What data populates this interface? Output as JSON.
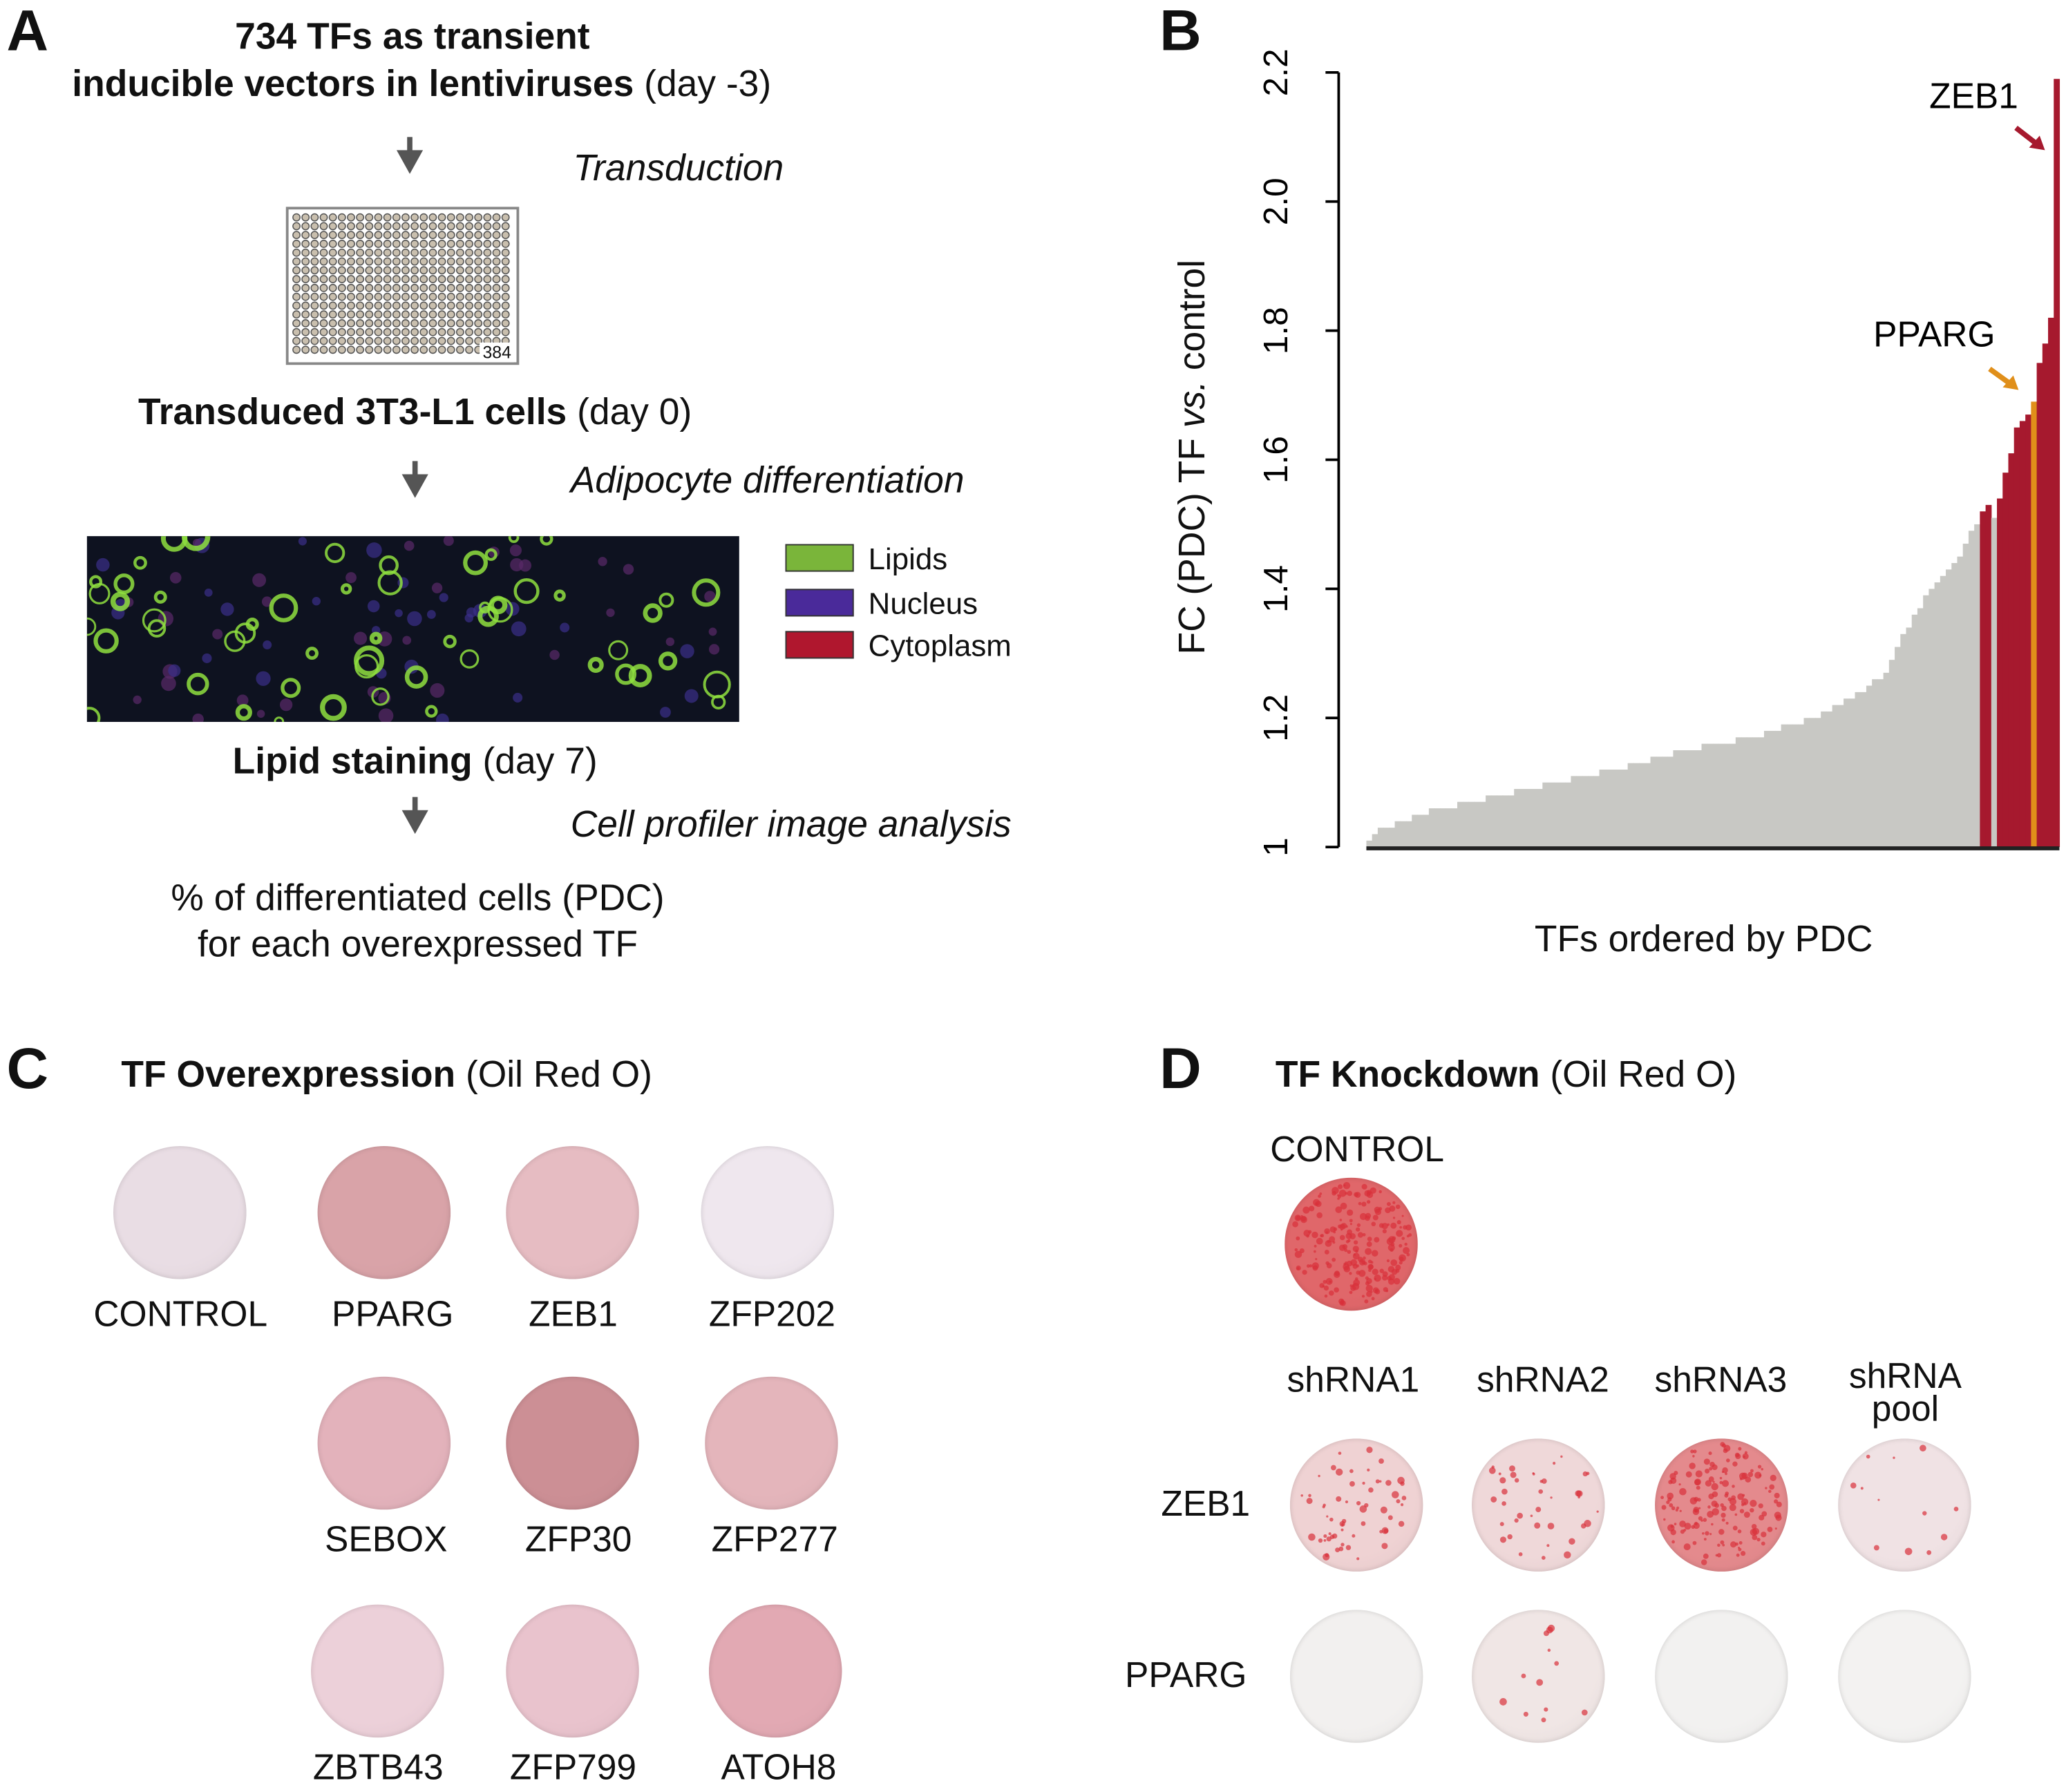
{
  "panel_a": {
    "letter": "A",
    "title_line1": "734 TFs as transient",
    "title_line2_bold": "inducible vectors in lentiviruses",
    "title_line2_normal": " (day -3)",
    "step1": "Transduction",
    "plate_label": "384",
    "cells_bold": "Transduced 3T3-L1 cells",
    "cells_normal": " (day 0)",
    "step2": "Adipocyte differentiation",
    "legend": [
      {
        "label": "Lipids",
        "color": "#7ab53a"
      },
      {
        "label": "Nucleus",
        "color": "#4a2a9a"
      },
      {
        "label": "Cytoplasm",
        "color": "#b0172e"
      }
    ],
    "staining_bold": "Lipid staining",
    "staining_normal": " (day 7)",
    "step3": "Cell profiler image analysis",
    "result_line1": "% of differentiated cells (PDC)",
    "result_line2": "for each overexpressed TF"
  },
  "panel_b": {
    "letter": "B",
    "ylabel_pre": "FC (PDC) TF ",
    "ylabel_italic": "vs.",
    "ylabel_post": " control",
    "xlabel": "TFs ordered by PDC",
    "annotations": [
      {
        "label": "ZEB1",
        "color": "#a6192e"
      },
      {
        "label": "PPARG",
        "color": "#e08f1a"
      }
    ]
  },
  "chart_data": {
    "type": "bar",
    "xlabel": "TFs ordered by PDC",
    "ylabel": "FC (PDC) TF vs. control",
    "ylim": [
      1.0,
      2.2
    ],
    "yticks": [
      "1",
      "1.2",
      "1.4",
      "1.6",
      "1.8",
      "2.0",
      "2.2"
    ],
    "grid": false,
    "colors": {
      "default": "#c8c8c4",
      "highlight": "#a6192e",
      "pparg": "#e08f1a"
    },
    "values": [
      1.01,
      1.02,
      1.03,
      1.03,
      1.03,
      1.04,
      1.04,
      1.04,
      1.05,
      1.05,
      1.05,
      1.06,
      1.06,
      1.06,
      1.06,
      1.06,
      1.07,
      1.07,
      1.07,
      1.07,
      1.07,
      1.08,
      1.08,
      1.08,
      1.08,
      1.08,
      1.09,
      1.09,
      1.09,
      1.09,
      1.09,
      1.1,
      1.1,
      1.1,
      1.1,
      1.1,
      1.11,
      1.11,
      1.11,
      1.11,
      1.11,
      1.12,
      1.12,
      1.12,
      1.12,
      1.12,
      1.13,
      1.13,
      1.13,
      1.13,
      1.14,
      1.14,
      1.14,
      1.14,
      1.15,
      1.15,
      1.15,
      1.15,
      1.15,
      1.16,
      1.16,
      1.16,
      1.16,
      1.16,
      1.16,
      1.17,
      1.17,
      1.17,
      1.17,
      1.17,
      1.18,
      1.18,
      1.18,
      1.19,
      1.19,
      1.19,
      1.19,
      1.2,
      1.2,
      1.2,
      1.21,
      1.21,
      1.22,
      1.22,
      1.23,
      1.23,
      1.24,
      1.24,
      1.25,
      1.26,
      1.26,
      1.27,
      1.29,
      1.31,
      1.33,
      1.34,
      1.36,
      1.37,
      1.39,
      1.4,
      1.41,
      1.42,
      1.43,
      1.44,
      1.45,
      1.47,
      1.49,
      1.5,
      1.52,
      1.53,
      1.51,
      1.54,
      1.58,
      1.61,
      1.65,
      1.66,
      1.67,
      1.69,
      1.75,
      1.78,
      1.82,
      2.19
    ],
    "highlight_indices": [
      108,
      109,
      111,
      112,
      113,
      114,
      115,
      116,
      118,
      119,
      120,
      121,
      122
    ],
    "pparg_index": 117,
    "zeb1_index": 122
  },
  "panel_c": {
    "letter": "C",
    "title_bold": "TF Overexpression",
    "title_normal": " (Oil Red O)",
    "dishes": [
      {
        "label": "CONTROL",
        "color": "#e9dde4"
      },
      {
        "label": "PPARG",
        "color": "#d9a3a8"
      },
      {
        "label": "ZEB1",
        "color": "#e6bcc2"
      },
      {
        "label": "ZFP202",
        "color": "#efe7ee"
      },
      {
        "label": "SEBOX",
        "color": "#e3b2bb"
      },
      {
        "label": "ZFP30",
        "color": "#cc8f95"
      },
      {
        "label": "ZFP277",
        "color": "#e4b5bb"
      },
      {
        "label": "ZBTB43",
        "color": "#ecd0d9"
      },
      {
        "label": "ZFP799",
        "color": "#e9c3cd"
      },
      {
        "label": "ATOH8",
        "color": "#e2a9b3"
      }
    ]
  },
  "panel_d": {
    "letter": "D",
    "title_bold": "TF Knockdown",
    "title_normal": " (Oil Red O)",
    "control_label": "CONTROL",
    "control_color": "#e0676a",
    "columns": [
      "shRNA1",
      "shRNA2",
      "shRNA3",
      "shRNA pool"
    ],
    "column_pool_line1": "shRNA",
    "column_pool_line2": "pool",
    "rows": [
      {
        "label": "ZEB1",
        "colors": [
          "#efd2d3",
          "#efd8d9",
          "#e48a8d",
          "#f0e2e4"
        ]
      },
      {
        "label": "PPARG",
        "colors": [
          "#f2f0ef",
          "#f0e6e5",
          "#f2f1f0",
          "#f3f2f1"
        ]
      }
    ]
  }
}
